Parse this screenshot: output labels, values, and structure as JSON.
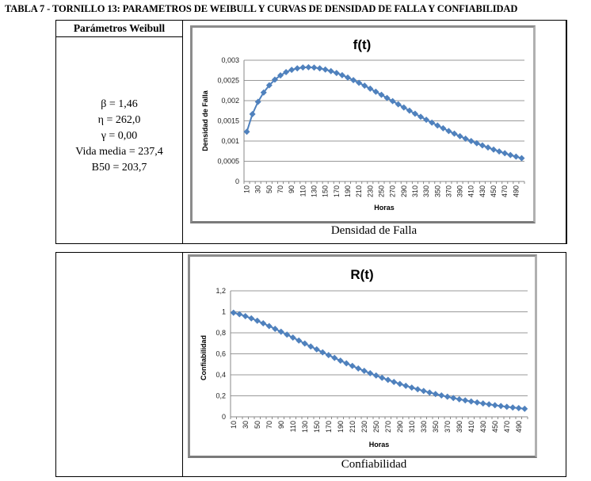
{
  "title": "TABLA 7 -  TORNILLO 13: PARAMETROS  DE WEIBULL  Y CURVAS  DE DENSIDAD DE FALLA  Y CONFIABILIDAD",
  "table": {
    "header": "Parámetros  Weibull",
    "params": [
      "β = 1,46",
      "η = 262,0",
      "γ = 0,00",
      "Vida media = 237,4",
      "B50  = 203,7"
    ],
    "caption_top": "Densidad de Falla",
    "caption_bottom": "Confiabilidad"
  },
  "chart_data": [
    {
      "type": "line",
      "title": "f(t)",
      "xlabel": "Horas",
      "ylabel": "Densidad de Falla",
      "ylim": [
        0,
        0.003
      ],
      "yticks": [
        "0",
        "0,0005",
        "0,001",
        "0,0015",
        "0,002",
        "0,0025",
        "0,003"
      ],
      "ytick_values": [
        0,
        0.0005,
        0.001,
        0.0015,
        0.002,
        0.0025,
        0.003
      ],
      "categories": [
        10,
        20,
        30,
        40,
        50,
        60,
        70,
        80,
        90,
        100,
        110,
        120,
        130,
        140,
        150,
        160,
        170,
        180,
        190,
        200,
        210,
        220,
        230,
        240,
        250,
        260,
        270,
        280,
        290,
        300,
        310,
        320,
        330,
        340,
        350,
        360,
        370,
        380,
        390,
        400,
        410,
        420,
        430,
        440,
        450,
        460,
        470,
        480,
        490,
        500
      ],
      "xtick_labels": [
        "10",
        "30",
        "50",
        "70",
        "90",
        "110",
        "130",
        "150",
        "170",
        "190",
        "210",
        "230",
        "250",
        "270",
        "290",
        "310",
        "330",
        "350",
        "370",
        "390",
        "410",
        "430",
        "450",
        "470",
        "490"
      ],
      "grid": true,
      "marker": "diamond",
      "color": "#4f81bd",
      "values": [
        0.00123,
        0.001667,
        0.001971,
        0.002201,
        0.00238,
        0.002519,
        0.002625,
        0.002706,
        0.002763,
        0.0028,
        0.002821,
        0.002826,
        0.002818,
        0.002799,
        0.002769,
        0.00273,
        0.002684,
        0.002631,
        0.002572,
        0.002508,
        0.00244,
        0.00237,
        0.002296,
        0.00222,
        0.002144,
        0.002066,
        0.001988,
        0.001909,
        0.001831,
        0.001753,
        0.001677,
        0.001601,
        0.001527,
        0.001455,
        0.001384,
        0.001315,
        0.001248,
        0.001183,
        0.00112,
        0.00106,
        0.001001,
        0.000945,
        0.000891,
        0.00084,
        0.00079,
        0.000743,
        0.000698,
        0.000654,
        0.000614,
        0.000575
      ]
    },
    {
      "type": "line",
      "title": "R(t)",
      "xlabel": "Horas",
      "ylabel": "Confiabilidad",
      "ylim": [
        0,
        1.2
      ],
      "yticks": [
        "0",
        "0,2",
        "0,4",
        "0,6",
        "0,8",
        "1",
        "1,2"
      ],
      "ytick_values": [
        0,
        0.2,
        0.4,
        0.6,
        0.8,
        1,
        1.2
      ],
      "categories": [
        10,
        20,
        30,
        40,
        50,
        60,
        70,
        80,
        90,
        100,
        110,
        120,
        130,
        140,
        150,
        160,
        170,
        180,
        190,
        200,
        210,
        220,
        230,
        240,
        250,
        260,
        270,
        280,
        290,
        300,
        310,
        320,
        330,
        340,
        350,
        360,
        370,
        380,
        390,
        400,
        410,
        420,
        430,
        440,
        450,
        460,
        470,
        480,
        490,
        500
      ],
      "xtick_labels": [
        "10",
        "30",
        "50",
        "70",
        "90",
        "110",
        "130",
        "150",
        "170",
        "190",
        "210",
        "230",
        "250",
        "270",
        "290",
        "310",
        "330",
        "350",
        "370",
        "390",
        "410",
        "430",
        "450",
        "470",
        "490"
      ],
      "grid": true,
      "marker": "diamond",
      "color": "#4f81bd",
      "values": [
        0.9915,
        0.9769,
        0.9586,
        0.9377,
        0.9148,
        0.8903,
        0.8645,
        0.8379,
        0.8105,
        0.7827,
        0.7545,
        0.7263,
        0.6981,
        0.6699,
        0.6421,
        0.6146,
        0.5876,
        0.561,
        0.535,
        0.5096,
        0.4848,
        0.4608,
        0.4374,
        0.4148,
        0.393,
        0.372,
        0.3518,
        0.3323,
        0.3136,
        0.2956,
        0.2785,
        0.2621,
        0.2465,
        0.2316,
        0.2173,
        0.2039,
        0.1911,
        0.1789,
        0.1674,
        0.1565,
        0.1462,
        0.1365,
        0.1273,
        0.1187,
        0.1105,
        0.1029,
        0.0957,
        0.0889,
        0.0826,
        0.0767
      ]
    }
  ]
}
